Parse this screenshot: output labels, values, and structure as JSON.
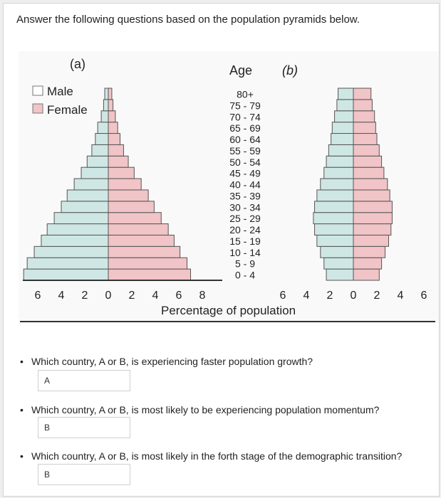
{
  "prompt": "Answer the following questions based on the population pyramids below.",
  "chart_data": {
    "type": "bar",
    "orientation": "horizontal-pyramid",
    "xlabel": "Percentage of population",
    "age_header": "Age",
    "legend": {
      "male": "Male",
      "female": "Female",
      "placement": "top-left"
    },
    "colors": {
      "male": "#cfe7e4",
      "female": "#f1c4c7"
    },
    "categories": [
      "0 - 4",
      "5 - 9",
      "10 - 14",
      "15 - 19",
      "20 - 24",
      "25 - 29",
      "30 - 34",
      "35 - 39",
      "40 - 44",
      "45 - 49",
      "50 - 54",
      "55 - 59",
      "60 - 64",
      "65 - 69",
      "70 - 74",
      "75 - 79",
      "80+"
    ],
    "panels": [
      {
        "label": "(a)",
        "xlim": [
          -8,
          8
        ],
        "tick_labels": [
          "8",
          "6",
          "4",
          "2",
          "0",
          "2",
          "4",
          "6",
          "8"
        ],
        "series": [
          {
            "name": "Male",
            "values": [
              7.2,
              6.9,
              6.3,
              5.7,
              5.2,
              4.6,
              4.0,
              3.5,
              2.9,
              2.3,
              1.8,
              1.4,
              1.1,
              0.9,
              0.6,
              0.4,
              0.3
            ]
          },
          {
            "name": "Female",
            "values": [
              7.0,
              6.7,
              6.1,
              5.6,
              5.1,
              4.5,
              3.9,
              3.4,
              2.8,
              2.2,
              1.7,
              1.3,
              1.0,
              0.8,
              0.6,
              0.4,
              0.3
            ]
          }
        ]
      },
      {
        "label": "(b)",
        "xlim": [
          -6,
          6
        ],
        "tick_labels": [
          "6",
          "4",
          "2",
          "0",
          "2",
          "4",
          "6"
        ],
        "series": [
          {
            "name": "Male",
            "values": [
              2.3,
              2.5,
              2.8,
              3.1,
              3.3,
              3.4,
              3.3,
              3.1,
              2.8,
              2.5,
              2.3,
              2.1,
              1.9,
              1.8,
              1.6,
              1.4,
              1.3
            ]
          },
          {
            "name": "Female",
            "values": [
              2.2,
              2.4,
              2.7,
              3.0,
              3.2,
              3.3,
              3.3,
              3.1,
              2.9,
              2.6,
              2.4,
              2.2,
              2.0,
              1.9,
              1.8,
              1.6,
              1.5
            ]
          }
        ]
      }
    ]
  },
  "questions": [
    {
      "text": "Which country, A or B, is experiencing faster population growth?",
      "answer": "A"
    },
    {
      "text": "Which country, A or B, is most likely to be experiencing population momentum?",
      "answer": "B"
    },
    {
      "text": "Which country, A or B, is most likely in the forth stage of the demographic transition?",
      "answer": "B"
    }
  ]
}
